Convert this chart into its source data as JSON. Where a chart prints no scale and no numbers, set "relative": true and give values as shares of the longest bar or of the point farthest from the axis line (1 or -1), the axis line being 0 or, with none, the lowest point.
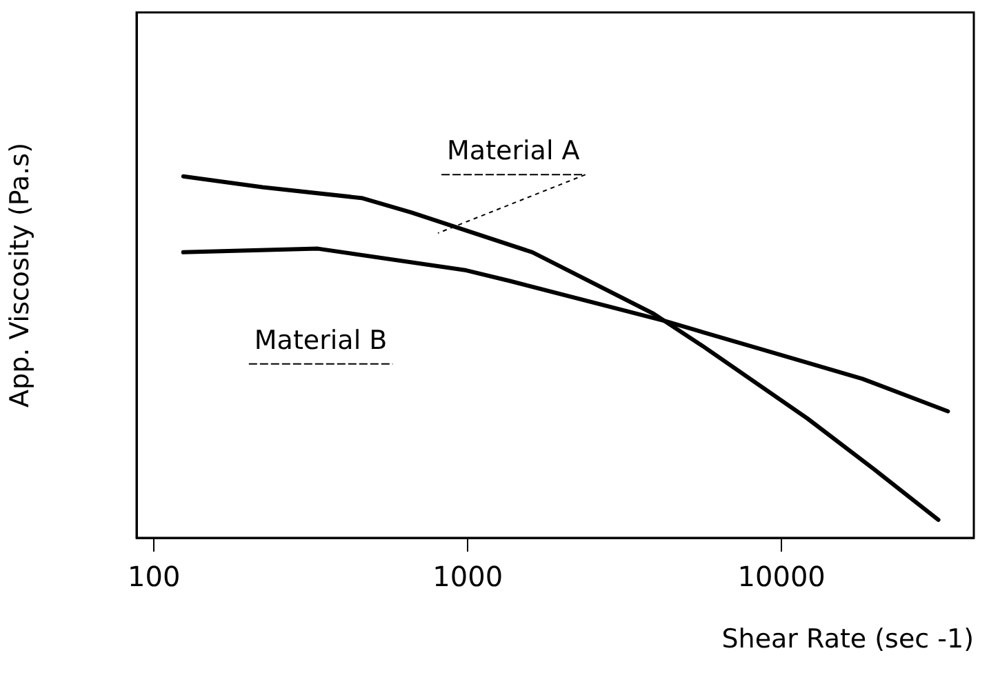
{
  "chart_data": {
    "type": "line",
    "xlabel": "Shear Rate (sec -1)",
    "ylabel": "App. Viscosity (Pa.s)",
    "log": "x",
    "relative": true,
    "xlim": [
      88,
      41000
    ],
    "xticks": [
      100,
      1000,
      10000
    ],
    "grid": false,
    "legend": false,
    "marker": "none",
    "line_style": "solid",
    "series": [
      {
        "name": "Material A",
        "color": "#000000",
        "x": [
          124,
          222,
          459,
          661,
          1607,
          3910,
          5620,
          12100,
          19700,
          31600
        ],
        "values": [
          1.0,
          0.97,
          0.94,
          0.9,
          0.79,
          0.62,
          0.53,
          0.33,
          0.19,
          0.05
        ]
      },
      {
        "name": "Material B",
        "color": "#000000",
        "x": [
          124,
          333,
          989,
          1370,
          4240,
          18100,
          33900
        ],
        "values": [
          0.79,
          0.8,
          0.74,
          0.71,
          0.6,
          0.44,
          0.35
        ]
      }
    ]
  }
}
